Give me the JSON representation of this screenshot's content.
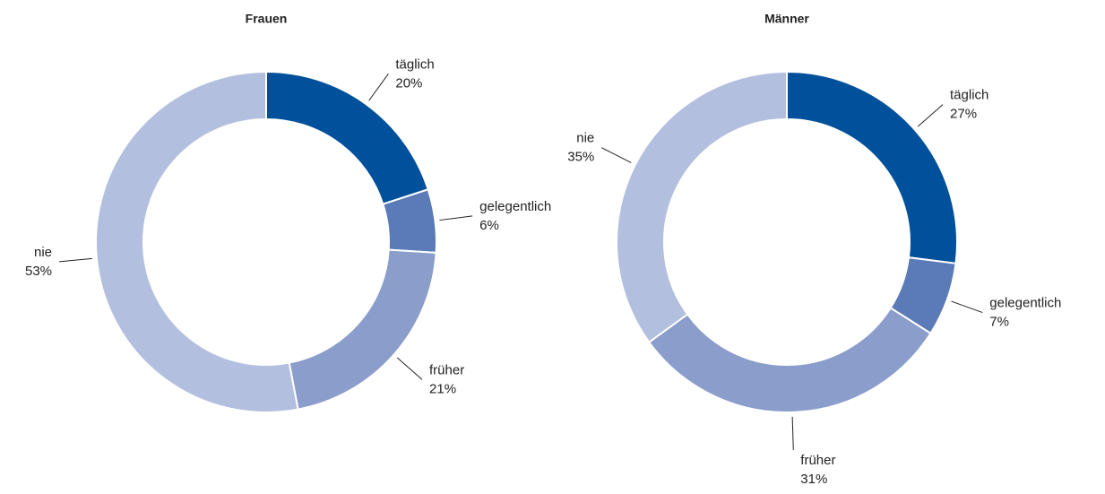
{
  "chart_data": [
    {
      "type": "donut",
      "title": "Frauen",
      "categories": [
        "täglich",
        "gelegentlich",
        "früher",
        "nie"
      ],
      "values": [
        20,
        6,
        21,
        53
      ],
      "value_labels": [
        "20%",
        "6%",
        "21%",
        "53%"
      ],
      "colors": [
        "#00509b",
        "#5b7bb8",
        "#8a9dcb",
        "#b3bfdf"
      ]
    },
    {
      "type": "donut",
      "title": "Männer",
      "categories": [
        "täglich",
        "gelegentlich",
        "früher",
        "nie"
      ],
      "values": [
        27,
        7,
        31,
        35
      ],
      "value_labels": [
        "27%",
        "7%",
        "31%",
        "35%"
      ],
      "colors": [
        "#00509b",
        "#5b7bb8",
        "#8a9dcb",
        "#b3bfdf"
      ]
    }
  ]
}
